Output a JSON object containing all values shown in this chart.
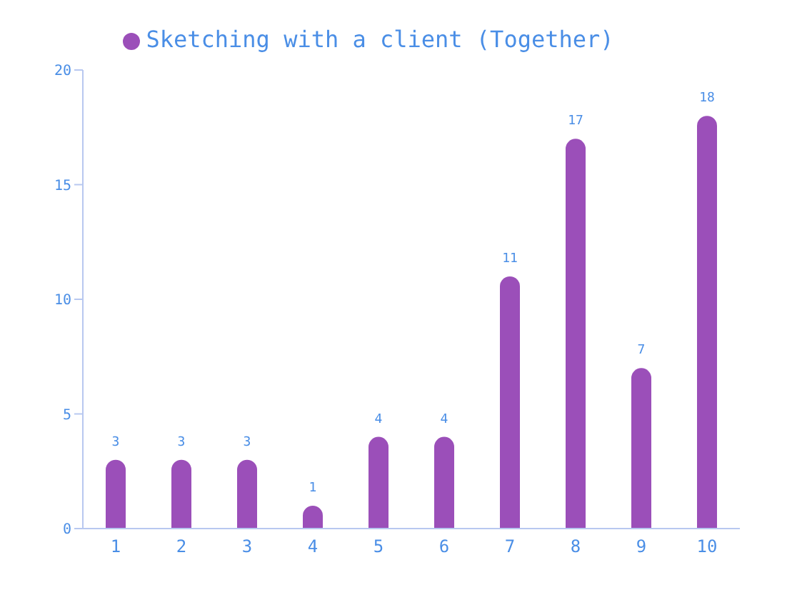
{
  "chart_data": {
    "type": "bar",
    "categories": [
      "1",
      "2",
      "3",
      "4",
      "5",
      "6",
      "7",
      "8",
      "9",
      "10"
    ],
    "series": [
      {
        "name": "Sketching with a client (Together)",
        "color": "#9b4fb9",
        "values": [
          3,
          3,
          3,
          1,
          4,
          4,
          11,
          17,
          7,
          18
        ]
      }
    ],
    "ylim": [
      0,
      20
    ],
    "yticks": [
      0,
      5,
      10,
      15,
      20
    ],
    "grid": false,
    "legend": "top",
    "data_labels": true
  }
}
